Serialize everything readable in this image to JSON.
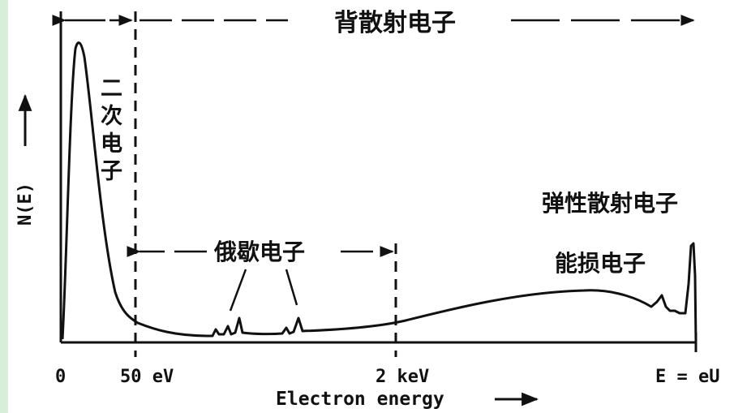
{
  "labels": {
    "backscatter": "背散射电子",
    "secondary": [
      "二",
      "次",
      "电",
      "子"
    ],
    "auger": "俄歇电子",
    "elastic": "弹性散射电子",
    "energy_loss": "能损电子"
  },
  "axes": {
    "x_title": "Electron energy",
    "y_title": "N(E)",
    "x_ticks": [
      "0",
      "50 eV",
      "2 keV",
      "E = eU"
    ]
  },
  "colors": {
    "ink": "#111111",
    "strip": "#d7efd9"
  }
}
